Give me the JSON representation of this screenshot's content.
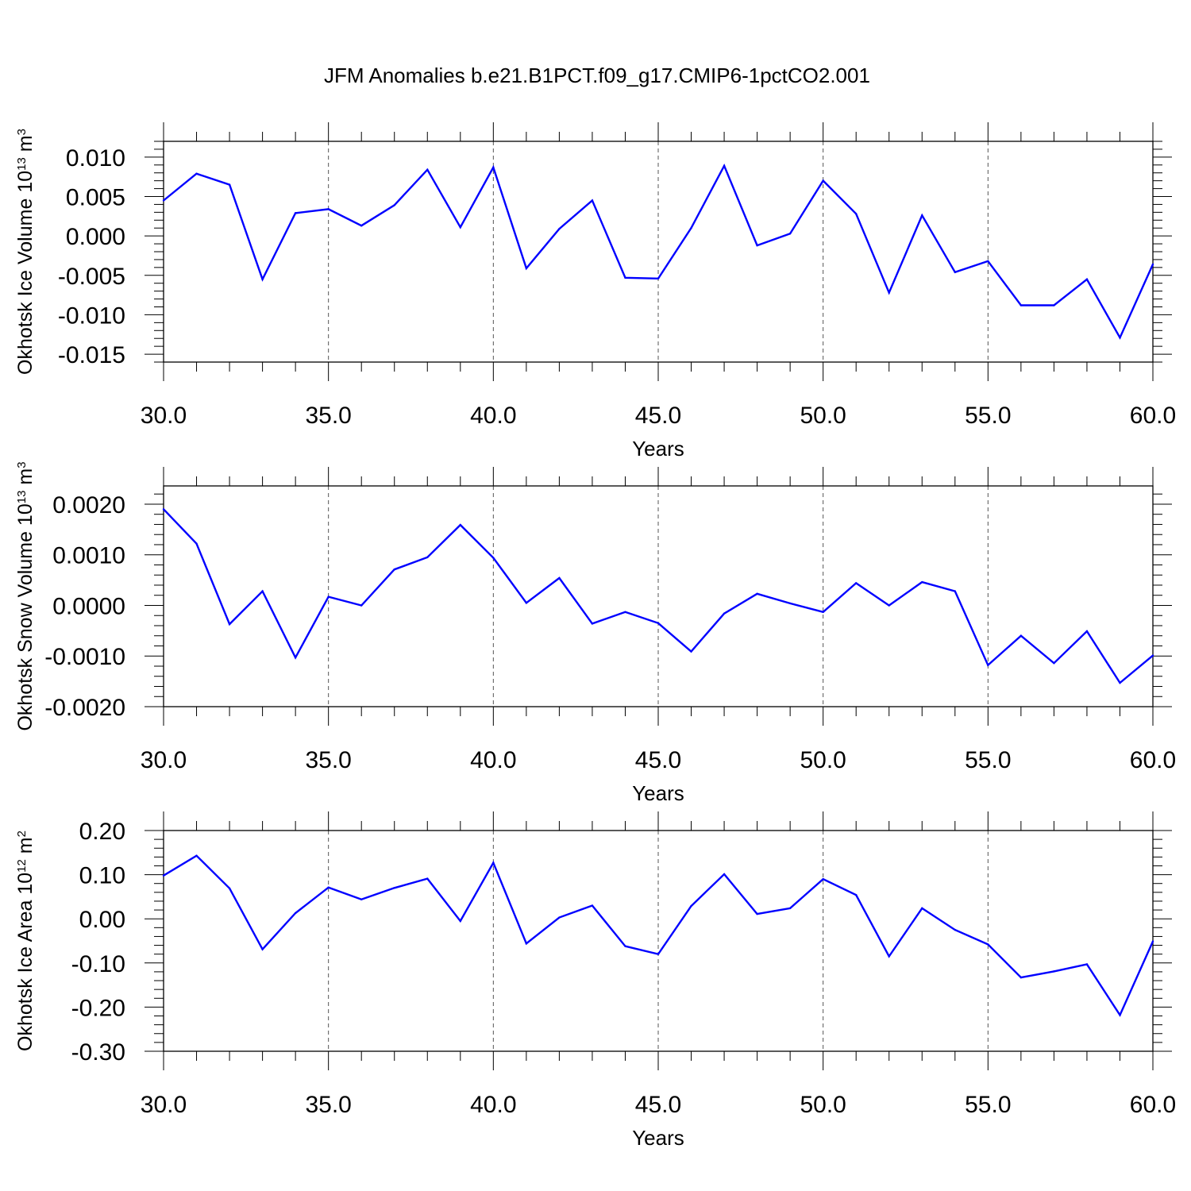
{
  "title": "JFM Anomalies b.e21.B1PCT.f09_g17.CMIP6-1pctCO2.001",
  "chart_data": [
    {
      "type": "line",
      "ylabel": "Okhotsk Ice Volume 10",
      "ylabel_exp": "13",
      "ylabel_unit": " m",
      "ylabel_unit_exp": "3",
      "xlabel": "Years",
      "xlim": [
        30,
        60
      ],
      "ylim": [
        -0.016,
        0.012
      ],
      "x_ticks": [
        "30.0",
        "35.0",
        "40.0",
        "45.0",
        "50.0",
        "55.0",
        "60.0"
      ],
      "y_ticks": [
        "0.010",
        "0.005",
        "0.000",
        "-0.005",
        "-0.010",
        "-0.015"
      ],
      "y_tick_values": [
        0.01,
        0.005,
        0.0,
        -0.005,
        -0.01,
        -0.015
      ],
      "grid": "dashed vertical at major x ticks",
      "line_color": "#0000ff",
      "x": [
        30,
        31,
        32,
        33,
        34,
        35,
        36,
        37,
        38,
        39,
        40,
        41,
        42,
        43,
        44,
        45,
        46,
        47,
        48,
        49,
        50,
        51,
        52,
        53,
        54,
        55,
        56,
        57,
        58,
        59,
        60
      ],
      "values": [
        0.0045,
        0.0079,
        0.0065,
        -0.0055,
        0.0029,
        0.0034,
        0.0013,
        0.0039,
        0.0084,
        0.0011,
        0.0087,
        -0.0041,
        0.0009,
        0.0045,
        -0.0053,
        -0.0054,
        0.001,
        0.0089,
        -0.0012,
        0.0003,
        0.007,
        0.0028,
        -0.0072,
        0.0026,
        -0.0046,
        -0.0032,
        -0.0088,
        -0.0088,
        -0.0055,
        -0.0129,
        -0.0036
      ]
    },
    {
      "type": "line",
      "ylabel": "Okhotsk Snow Volume 10",
      "ylabel_exp": "13",
      "ylabel_unit": " m",
      "ylabel_unit_exp": "3",
      "xlabel": "Years",
      "xlim": [
        30,
        60
      ],
      "ylim": [
        -0.002,
        0.00236
      ],
      "x_ticks": [
        "30.0",
        "35.0",
        "40.0",
        "45.0",
        "50.0",
        "55.0",
        "60.0"
      ],
      "y_ticks": [
        "0.0020",
        "0.0010",
        "0.0000",
        "-0.0010",
        "-0.0020"
      ],
      "y_tick_values": [
        0.002,
        0.001,
        0.0,
        -0.001,
        -0.002
      ],
      "grid": "dashed vertical at major x ticks",
      "line_color": "#0000ff",
      "x": [
        30,
        31,
        32,
        33,
        34,
        35,
        36,
        37,
        38,
        39,
        40,
        41,
        42,
        43,
        44,
        45,
        46,
        47,
        48,
        49,
        50,
        51,
        52,
        53,
        54,
        55,
        56,
        57,
        58,
        59,
        60
      ],
      "values": [
        0.0019,
        0.00122,
        -0.00037,
        0.00028,
        -0.00103,
        0.00017,
        0.0,
        0.00071,
        0.00095,
        0.00159,
        0.00094,
        5e-05,
        0.00054,
        -0.00036,
        -0.00013,
        -0.00035,
        -0.00091,
        -0.00016,
        0.00023,
        4e-05,
        -0.00013,
        0.00044,
        0.0,
        0.00046,
        0.00028,
        -0.00118,
        -0.0006,
        -0.00114,
        -0.00051,
        -0.00153,
        -0.00099
      ]
    },
    {
      "type": "line",
      "ylabel": "Okhotsk Ice Area 10",
      "ylabel_exp": "12",
      "ylabel_unit": " m",
      "ylabel_unit_exp": "2",
      "xlabel": "Years",
      "xlim": [
        30,
        60
      ],
      "ylim": [
        -0.3,
        0.2
      ],
      "x_ticks": [
        "30.0",
        "35.0",
        "40.0",
        "45.0",
        "50.0",
        "55.0",
        "60.0"
      ],
      "y_ticks": [
        "0.20",
        "0.10",
        "0.00",
        "-0.10",
        "-0.20",
        "-0.30"
      ],
      "y_tick_values": [
        0.2,
        0.1,
        0.0,
        -0.1,
        -0.2,
        -0.3
      ],
      "grid": "dashed vertical at major x ticks",
      "line_color": "#0000ff",
      "x": [
        30,
        31,
        32,
        33,
        34,
        35,
        36,
        37,
        38,
        39,
        40,
        41,
        42,
        43,
        44,
        45,
        46,
        47,
        48,
        49,
        50,
        51,
        52,
        53,
        54,
        55,
        56,
        57,
        58,
        59,
        60
      ],
      "values": [
        0.098,
        0.143,
        0.069,
        -0.069,
        0.013,
        0.071,
        0.044,
        0.07,
        0.091,
        -0.005,
        0.127,
        -0.056,
        0.003,
        0.03,
        -0.062,
        -0.08,
        0.029,
        0.101,
        0.011,
        0.024,
        0.09,
        0.054,
        -0.085,
        0.024,
        -0.025,
        -0.058,
        -0.133,
        -0.119,
        -0.103,
        -0.218,
        -0.051
      ]
    }
  ]
}
